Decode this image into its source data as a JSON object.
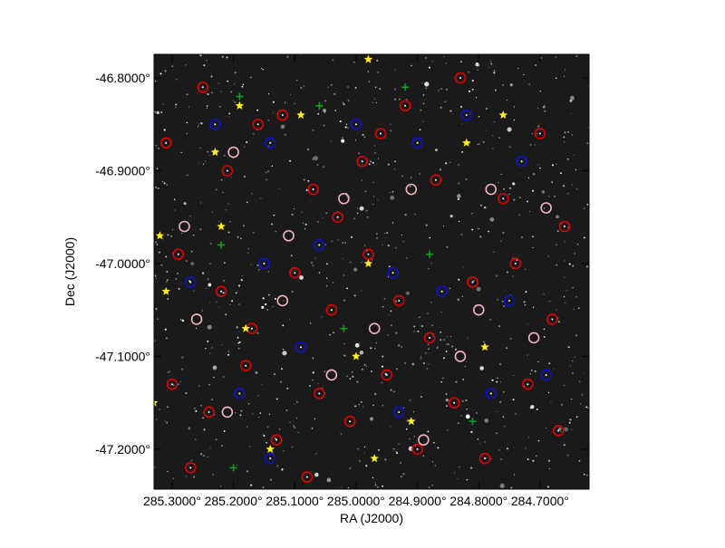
{
  "chart_data": {
    "type": "scatter",
    "xlabel": "RA (J2000)",
    "ylabel": "Dec (J2000)",
    "xlim": [
      285.3295,
      284.62
    ],
    "ylim": [
      -47.243,
      -46.7746
    ],
    "xticks": [
      {
        "value": 285.3,
        "label": "285.3000°"
      },
      {
        "value": 285.2,
        "label": "285.2000°"
      },
      {
        "value": 285.1,
        "label": "285.1000°"
      },
      {
        "value": 285.0,
        "label": "285.0000°"
      },
      {
        "value": 284.9,
        "label": "284.9000°"
      },
      {
        "value": 284.8,
        "label": "284.8000°"
      },
      {
        "value": 284.7,
        "label": "284.7000°"
      }
    ],
    "yticks": [
      {
        "value": -46.8,
        "label": "-46.8000°"
      },
      {
        "value": -46.9,
        "label": "-46.9000°"
      },
      {
        "value": -47.0,
        "label": "-47.0000°"
      },
      {
        "value": -47.1,
        "label": "-47.1000°"
      },
      {
        "value": -47.2,
        "label": "-47.2000°"
      }
    ],
    "background": "#1a1a1a",
    "series": [
      {
        "color": "#e00000",
        "marker": "circle-dot",
        "x": [
          285.31,
          285.25,
          285.21,
          285.16,
          285.12,
          285.07,
          285.03,
          284.96,
          284.92,
          284.87,
          284.83,
          284.76,
          284.7,
          284.66,
          285.29,
          285.22,
          285.17,
          285.1,
          285.04,
          284.98,
          284.93,
          284.88,
          284.81,
          284.74,
          284.68,
          285.3,
          285.24,
          285.18,
          285.13,
          285.06,
          285.01,
          284.95,
          284.9,
          284.84,
          284.79,
          284.72,
          284.67,
          285.27,
          285.08,
          284.99
        ],
        "values": [
          -46.87,
          -46.81,
          -46.9,
          -46.85,
          -46.84,
          -46.92,
          -46.95,
          -46.86,
          -46.83,
          -46.91,
          -46.8,
          -46.93,
          -46.86,
          -46.96,
          -46.99,
          -47.03,
          -47.07,
          -47.01,
          -47.05,
          -46.99,
          -47.04,
          -47.08,
          -47.02,
          -47.0,
          -47.06,
          -47.13,
          -47.16,
          -47.11,
          -47.19,
          -47.14,
          -47.17,
          -47.12,
          -47.2,
          -47.15,
          -47.21,
          -47.13,
          -47.18,
          -47.22,
          -47.23,
          -46.89
        ]
      },
      {
        "color": "#f0b8c0",
        "marker": "circle",
        "x": [
          285.28,
          285.2,
          285.11,
          285.02,
          284.91,
          284.78,
          284.69,
          285.26,
          285.12,
          284.97,
          284.83,
          284.71,
          285.21,
          285.04,
          284.89,
          284.8
        ],
        "values": [
          -46.96,
          -46.88,
          -46.97,
          -46.93,
          -46.92,
          -46.92,
          -46.94,
          -47.06,
          -47.04,
          -47.07,
          -47.1,
          -47.08,
          -47.16,
          -47.12,
          -47.19,
          -47.05
        ]
      },
      {
        "color": "#1010d0",
        "marker": "circle-dot",
        "x": [
          285.23,
          285.14,
          285.0,
          284.9,
          284.82,
          284.73,
          285.27,
          285.15,
          285.06,
          284.94,
          284.86,
          284.75,
          285.19,
          285.09,
          284.93,
          284.78,
          284.69,
          285.14
        ],
        "values": [
          -46.85,
          -46.87,
          -46.85,
          -46.87,
          -46.84,
          -46.89,
          -47.02,
          -47.0,
          -46.98,
          -47.01,
          -47.03,
          -47.04,
          -47.14,
          -47.09,
          -47.16,
          -47.14,
          -47.12,
          -47.21
        ]
      },
      {
        "color": "#10a020",
        "marker": "plus",
        "x": [
          285.19,
          285.06,
          284.92,
          285.22,
          284.88,
          285.02,
          284.81,
          285.2
        ],
        "values": [
          -46.82,
          -46.83,
          -46.81,
          -46.98,
          -46.99,
          -47.07,
          -47.17,
          -47.22
        ]
      },
      {
        "color": "#ffee20",
        "marker": "star",
        "x": [
          284.98,
          285.19,
          285.09,
          285.23,
          284.82,
          285.22,
          285.32,
          284.98,
          285.31,
          285.18,
          285.33,
          284.91,
          285.14,
          284.97,
          284.79,
          284.76,
          285.0
        ],
        "values": [
          -46.78,
          -46.83,
          -46.84,
          -46.88,
          -46.87,
          -46.96,
          -46.97,
          -47.0,
          -47.03,
          -47.07,
          -47.15,
          -47.17,
          -47.2,
          -47.21,
          -47.09,
          -46.84,
          -47.1
        ]
      }
    ]
  }
}
